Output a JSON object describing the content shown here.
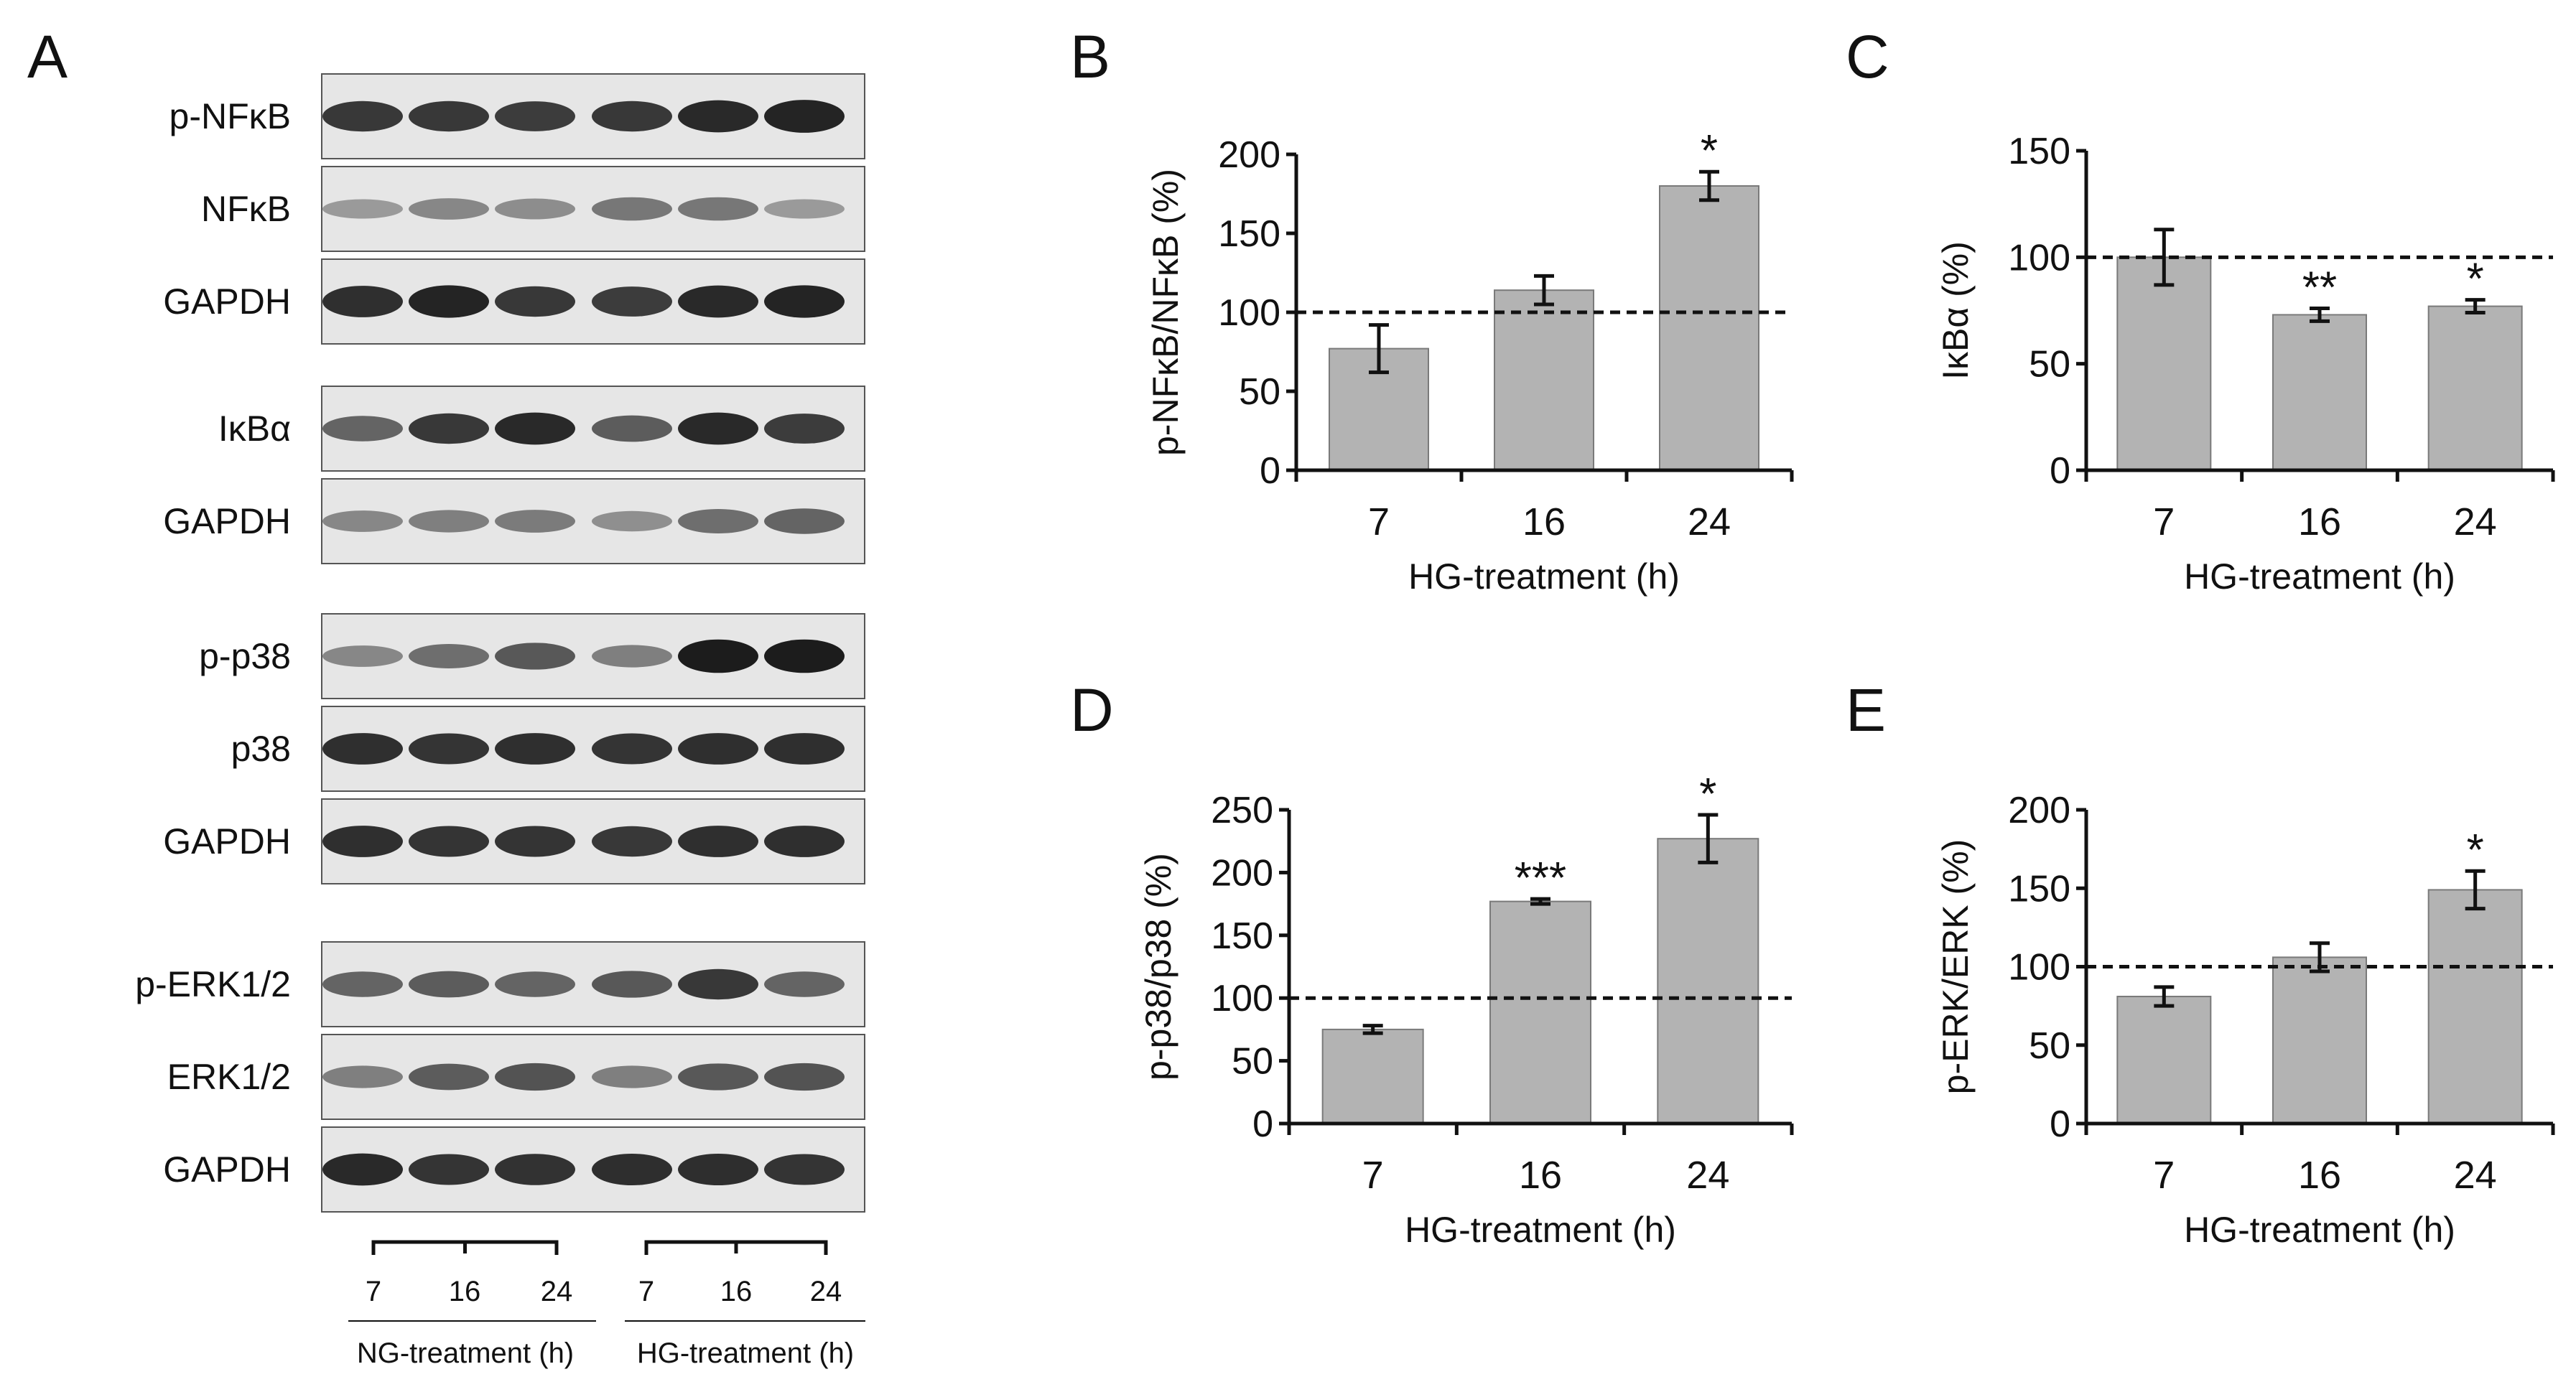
{
  "blot": {
    "letter": "A",
    "groups": [
      {
        "rows": [
          "p-NFκB",
          "NFκB",
          "GAPDH"
        ]
      },
      {
        "rows": [
          "IκBα",
          "GAPDH"
        ]
      },
      {
        "rows": [
          "p-p38",
          "p38",
          "GAPDH"
        ]
      },
      {
        "rows": [
          "p-ERK1/2",
          "ERK1/2",
          "GAPDH"
        ]
      }
    ],
    "lanes": [
      "7",
      "16",
      "24",
      "7",
      "16",
      "24"
    ],
    "treatment_groups": [
      "NG-treatment (h)",
      "HG-treatment (h)"
    ],
    "band_intensity": [
      [
        0.8,
        0.8,
        0.78,
        0.8,
        0.88,
        0.92
      ],
      [
        0.25,
        0.35,
        0.32,
        0.45,
        0.45,
        0.25
      ],
      [
        0.85,
        0.9,
        0.8,
        0.78,
        0.88,
        0.9
      ],
      [
        0.55,
        0.8,
        0.88,
        0.6,
        0.88,
        0.78
      ],
      [
        0.35,
        0.4,
        0.42,
        0.3,
        0.5,
        0.55
      ],
      [
        0.35,
        0.5,
        0.62,
        0.4,
        0.95,
        0.95
      ],
      [
        0.85,
        0.82,
        0.85,
        0.82,
        0.85,
        0.85
      ],
      [
        0.85,
        0.82,
        0.82,
        0.8,
        0.85,
        0.85
      ],
      [
        0.55,
        0.6,
        0.55,
        0.62,
        0.8,
        0.55
      ],
      [
        0.4,
        0.6,
        0.65,
        0.4,
        0.62,
        0.65
      ],
      [
        0.88,
        0.82,
        0.84,
        0.86,
        0.86,
        0.82
      ]
    ]
  },
  "chart_data": [
    {
      "letter": "B",
      "type": "bar",
      "categories": [
        "7",
        "16",
        "24"
      ],
      "values": [
        77,
        114,
        180
      ],
      "errors": [
        15,
        9,
        9
      ],
      "significance": [
        "",
        "",
        "*"
      ],
      "reference_line": 100,
      "ylim": [
        0,
        200
      ],
      "yticks": [
        0,
        50,
        100,
        150,
        200
      ],
      "ylabel": "p-NFκB/NFκB (%)",
      "xlabel": "HG-treatment (h)"
    },
    {
      "letter": "C",
      "type": "bar",
      "categories": [
        "7",
        "16",
        "24"
      ],
      "values": [
        100,
        73,
        77
      ],
      "errors": [
        13,
        3,
        3
      ],
      "significance": [
        "",
        "**",
        "*"
      ],
      "reference_line": 100,
      "ylim": [
        0,
        150
      ],
      "yticks": [
        0,
        50,
        100,
        150
      ],
      "ylabel": "IκBα (%)",
      "xlabel": "HG-treatment (h)"
    },
    {
      "letter": "D",
      "type": "bar",
      "categories": [
        "7",
        "16",
        "24"
      ],
      "values": [
        75,
        177,
        227
      ],
      "errors": [
        3,
        2,
        19
      ],
      "significance": [
        "",
        "***",
        "*"
      ],
      "reference_line": 100,
      "ylim": [
        0,
        250
      ],
      "yticks": [
        0,
        50,
        100,
        150,
        200,
        250
      ],
      "ylabel": "p-p38/p38 (%)",
      "xlabel": "HG-treatment (h)"
    },
    {
      "letter": "E",
      "type": "bar",
      "categories": [
        "7",
        "16",
        "24"
      ],
      "values": [
        81,
        106,
        149
      ],
      "errors": [
        6,
        9,
        12
      ],
      "significance": [
        "",
        "",
        "*"
      ],
      "reference_line": 100,
      "ylim": [
        0,
        200
      ],
      "yticks": [
        0,
        50,
        100,
        150,
        200
      ],
      "ylabel": "p-ERK/ERK (%)",
      "xlabel": "HG-treatment (h)"
    }
  ],
  "colors": {
    "bar_fill": "#b3b3b3",
    "bar_stroke": "#7a7a7a",
    "axis": "#111111",
    "blot_bg": "#e6e6e6",
    "band": "#141414"
  }
}
